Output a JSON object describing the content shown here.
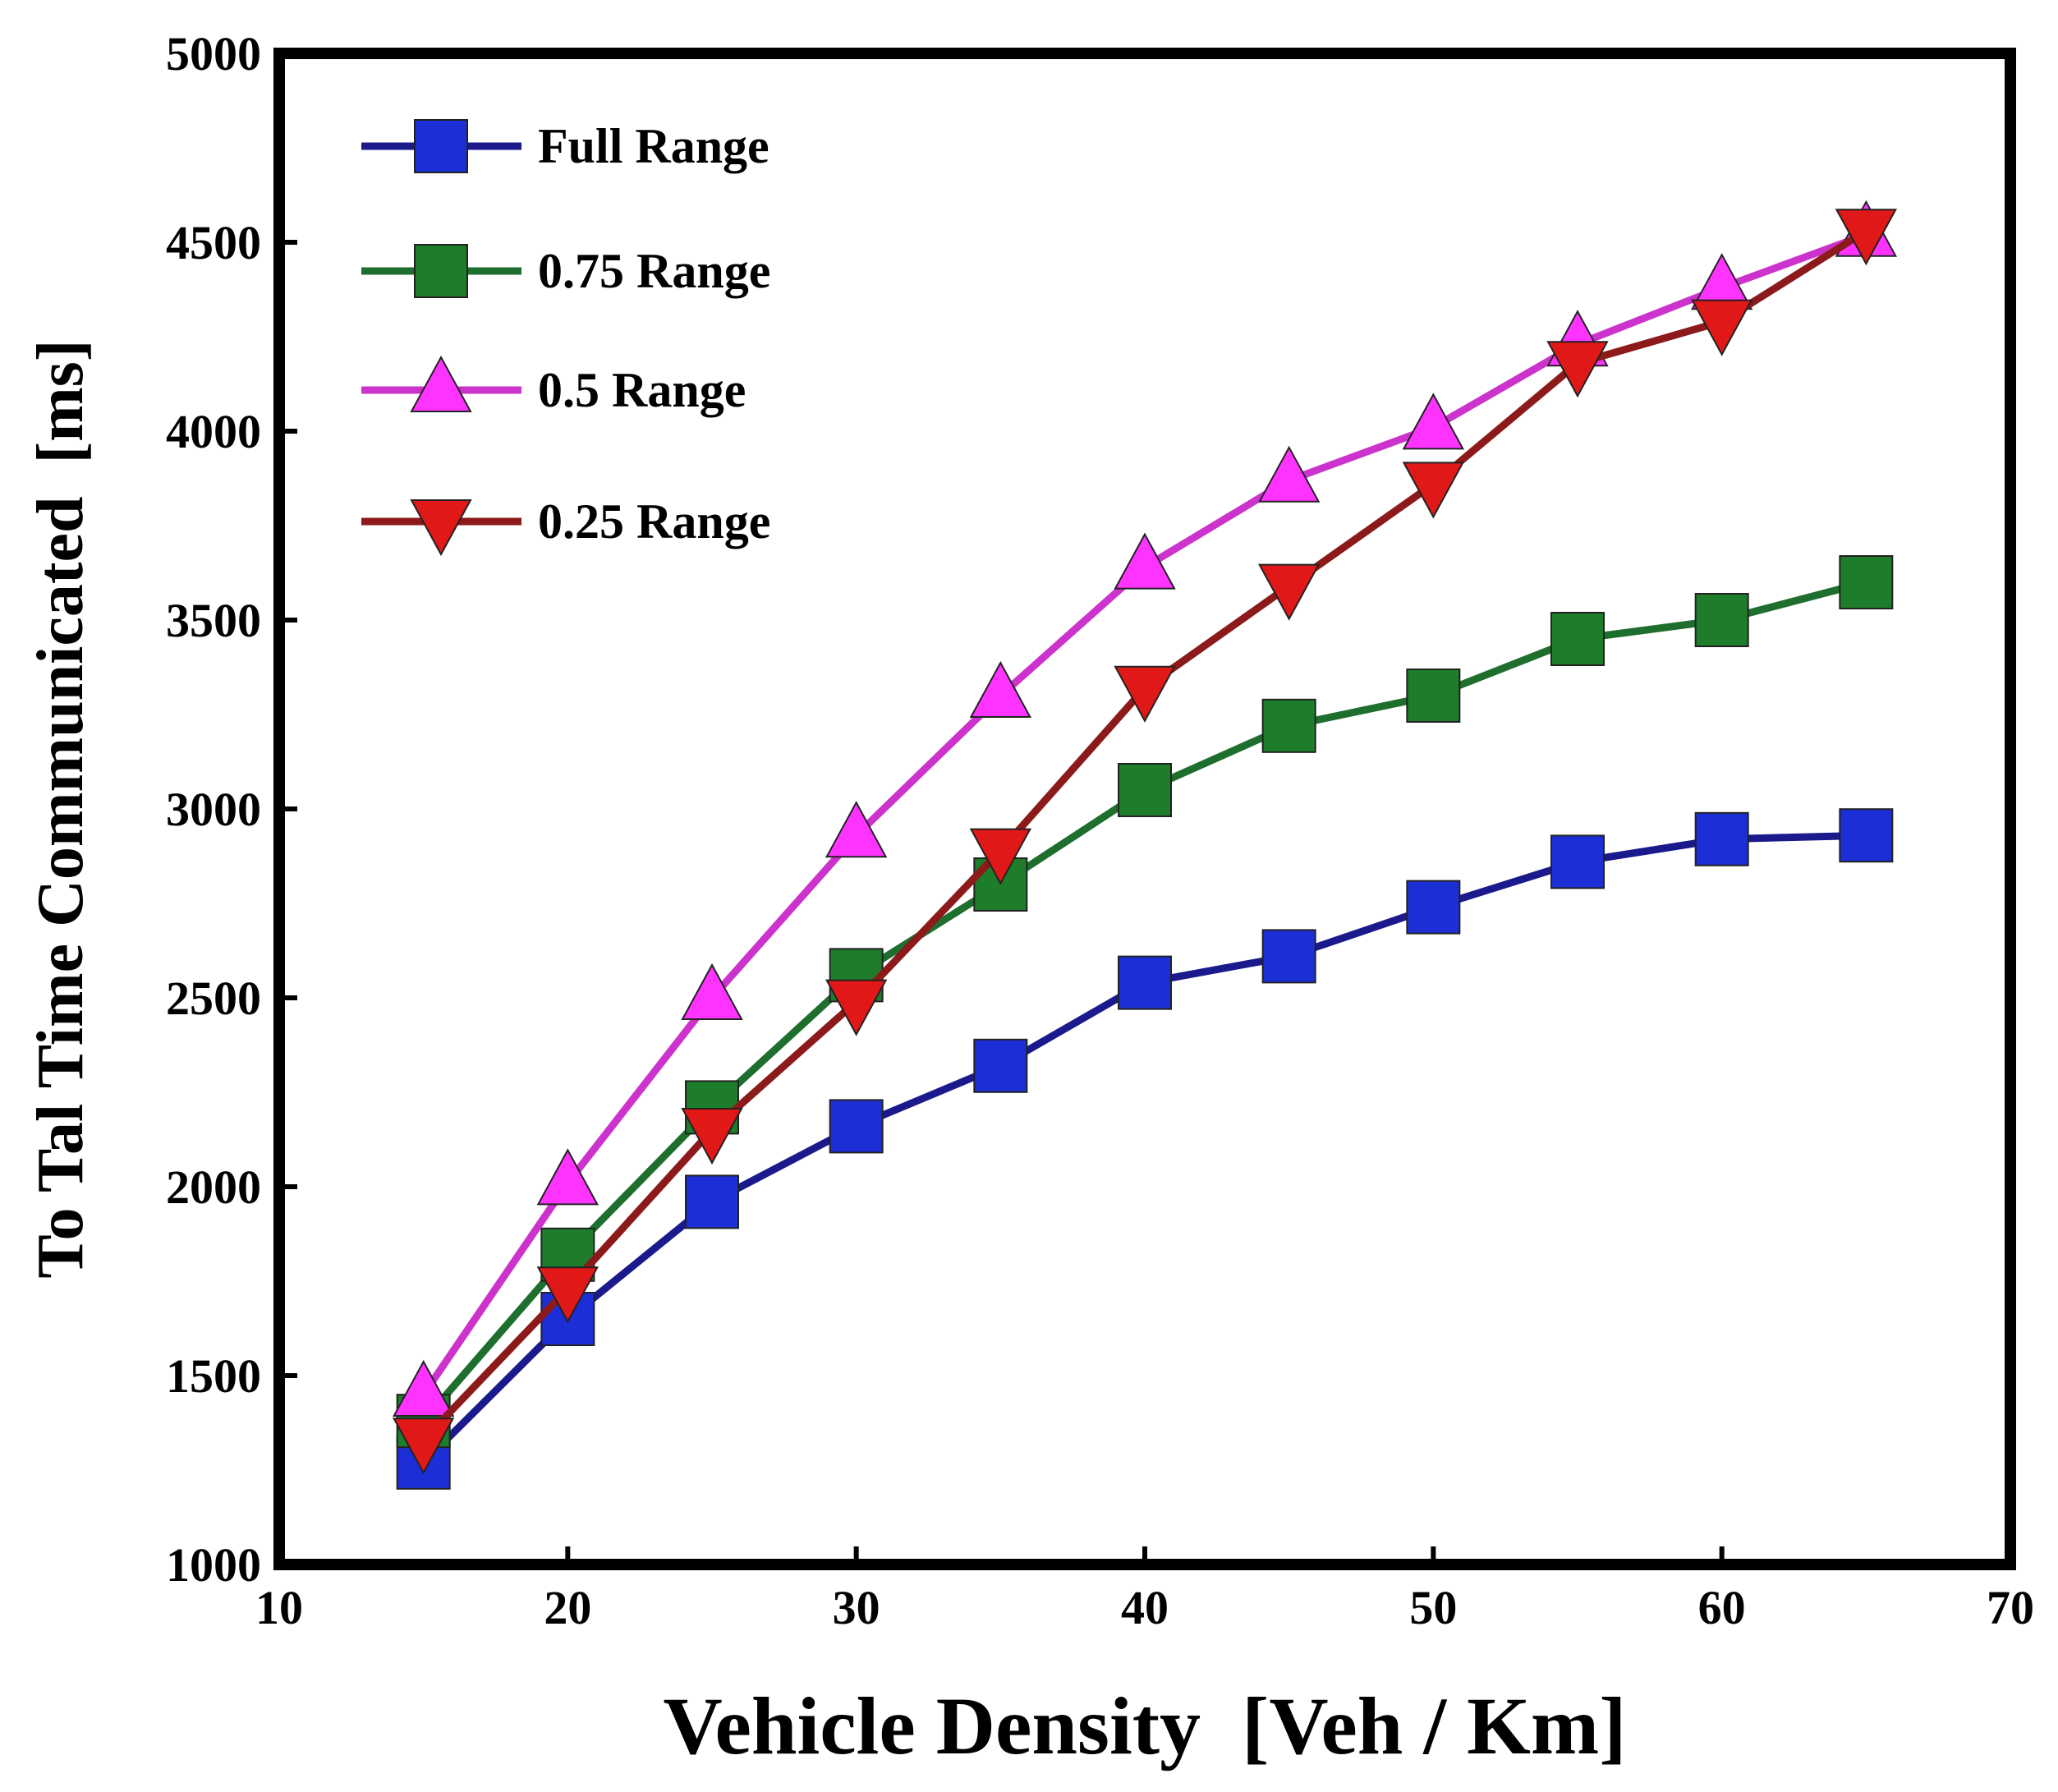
{
  "chart_data": {
    "type": "line",
    "title": "",
    "xlabel": "Vehicle Density  [Veh / Km]",
    "ylabel": "To Tal Time Communicated  [ms]",
    "xlim": [
      10,
      70
    ],
    "ylim": [
      1000,
      5000
    ],
    "xticks": [
      10,
      20,
      30,
      40,
      50,
      60,
      70
    ],
    "yticks": [
      1000,
      1500,
      2000,
      2500,
      3000,
      3500,
      4000,
      4500,
      5000
    ],
    "x": [
      15,
      20,
      25,
      30,
      35,
      40,
      45,
      50,
      55,
      60,
      65
    ],
    "legend_position": "top-left",
    "grid": false,
    "series": [
      {
        "name": "Full Range",
        "color": "#1a1a8c",
        "marker_color": "#1c2fd6",
        "marker": "square",
        "values": [
          1270,
          1650,
          1960,
          2160,
          2320,
          2540,
          2610,
          2740,
          2860,
          2920,
          2930
        ]
      },
      {
        "name": "0.75 Range",
        "color": "#1e6e2e",
        "marker_color": "#1e7d2a",
        "marker": "square",
        "values": [
          1380,
          1820,
          2210,
          2560,
          2800,
          3050,
          3220,
          3300,
          3450,
          3500,
          3600
        ]
      },
      {
        "name": "0.5 Range",
        "color": "#cc33cc",
        "marker_color": "#ff33ff",
        "marker": "triangle-up",
        "values": [
          1450,
          2010,
          2500,
          2930,
          3300,
          3640,
          3870,
          4010,
          4230,
          4380,
          4520
        ]
      },
      {
        "name": "0.25 Range",
        "color": "#8c1a1a",
        "marker_color": "#e01818",
        "marker": "triangle-down",
        "values": [
          1330,
          1730,
          2150,
          2490,
          2890,
          3320,
          3590,
          3860,
          4180,
          4290,
          4530
        ]
      }
    ]
  }
}
